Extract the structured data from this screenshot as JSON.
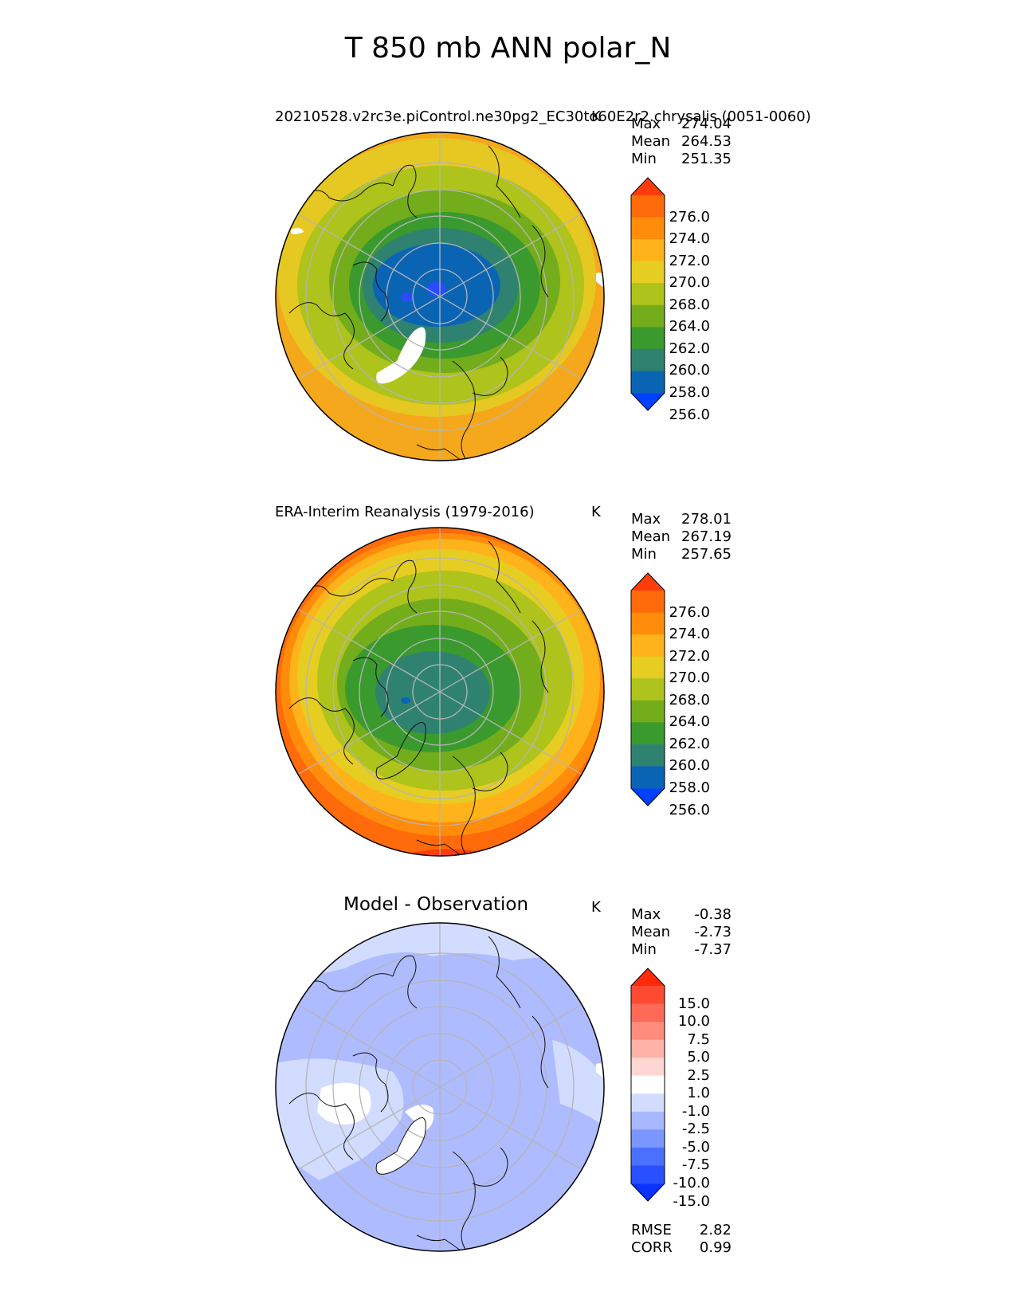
{
  "figure_title": "T 850 mb ANN polar_N",
  "panels": [
    {
      "id": "model",
      "title": "20210528.v2rc3e.piControl.ne30pg2_EC30to60E2r2.chrysalis (0051-0060)",
      "units": "K",
      "stats": {
        "max_label": "Max",
        "max": "274.04",
        "mean_label": "Mean",
        "mean": "264.53",
        "min_label": "Min",
        "min": "251.35"
      },
      "colorbar": {
        "tick_labels": [
          "276.0",
          "274.0",
          "272.0",
          "270.0",
          "268.0",
          "264.0",
          "262.0",
          "260.0",
          "258.0",
          "256.0"
        ],
        "colors": [
          "#0040ff",
          "#0a64b4",
          "#2f8270",
          "#3a9a2e",
          "#74ad1c",
          "#aec31c",
          "#e6cd22",
          "#ffb31a",
          "#ff8c0a",
          "#ff6a0a",
          "#ff3c0a"
        ]
      }
    },
    {
      "id": "obs",
      "title": "ERA-Interim Reanalysis (1979-2016)",
      "units": "K",
      "stats": {
        "max_label": "Max",
        "max": "278.01",
        "mean_label": "Mean",
        "mean": "267.19",
        "min_label": "Min",
        "min": "257.65"
      },
      "colorbar": {
        "tick_labels": [
          "276.0",
          "274.0",
          "272.0",
          "270.0",
          "268.0",
          "264.0",
          "262.0",
          "260.0",
          "258.0",
          "256.0"
        ],
        "colors": [
          "#0040ff",
          "#0a64b4",
          "#2f8270",
          "#3a9a2e",
          "#74ad1c",
          "#aec31c",
          "#e6cd22",
          "#ffb31a",
          "#ff8c0a",
          "#ff6a0a",
          "#ff3c0a"
        ]
      }
    },
    {
      "id": "diff",
      "title": "Model - Observation",
      "units": "K",
      "stats": {
        "max_label": "Max",
        "max": "-0.38",
        "mean_label": "Mean",
        "mean": "-2.73",
        "min_label": "Min",
        "min": "-7.37"
      },
      "colorbar": {
        "tick_labels": [
          "15.0",
          "10.0",
          "7.5",
          "5.0",
          "2.5",
          "1.0",
          "-1.0",
          "-2.5",
          "-5.0",
          "-7.5",
          "-10.0",
          "-15.0"
        ],
        "colors": [
          "#0a32ff",
          "#2850ff",
          "#4a70ff",
          "#7a96ff",
          "#a8b8ff",
          "#d2dcff",
          "#ffffff",
          "#ffd6d2",
          "#ffb2a8",
          "#ff8c7c",
          "#ff6a56",
          "#ff4a32",
          "#ff2a0a"
        ]
      },
      "metrics": {
        "rmse_label": "RMSE",
        "rmse": "2.82",
        "corr_label": "CORR",
        "corr": "0.99"
      }
    }
  ],
  "map_colors": {
    "model": {
      "rings": [
        "#f5a81c",
        "#e6c822",
        "#aec31c",
        "#74ad1c",
        "#3a9a2e",
        "#2f8270",
        "#0a64b4"
      ],
      "center_blob": "#2a4cff",
      "missing": "#ffffff"
    },
    "obs": {
      "rings": [
        "#ff6a0a",
        "#ff8c0a",
        "#ffb31a",
        "#e6cd22",
        "#aec31c",
        "#74ad1c",
        "#3a9a2e",
        "#2f8270"
      ],
      "edge_hot": "#ff3c0a"
    },
    "diff": {
      "base": "#aebcff",
      "light": "#d2dcff",
      "missing": "#ffffff"
    }
  }
}
